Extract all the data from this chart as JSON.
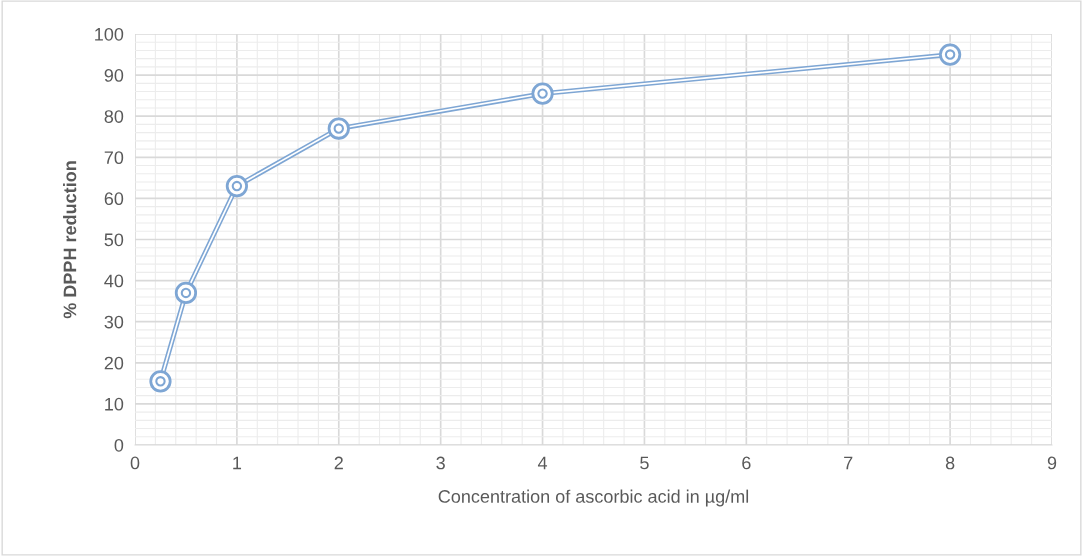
{
  "chart_data": {
    "type": "line",
    "xlabel": "Concentration of ascorbic acid in µg/ml",
    "ylabel": "% DPPH reduction",
    "series": [
      {
        "color": "#7ea6d4",
        "x": [
          0.25,
          0.5,
          1,
          2,
          4,
          8
        ],
        "values": [
          15.5,
          37,
          63,
          77,
          85.5,
          95
        ]
      }
    ],
    "xlim": [
      0,
      9
    ],
    "xticks": [
      0,
      1,
      2,
      3,
      4,
      5,
      6,
      7,
      8,
      9
    ],
    "ylim": [
      0,
      100
    ],
    "yticks": [
      0,
      10,
      20,
      30,
      40,
      50,
      60,
      70,
      80,
      90,
      100
    ],
    "grid": true,
    "marker": "circle",
    "line_style": "solid",
    "legend": false
  }
}
